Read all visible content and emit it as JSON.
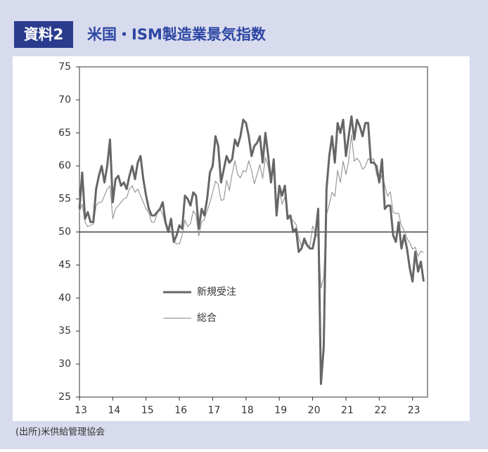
{
  "header": {
    "label": "資料2",
    "title": "米国・ISM製造業景気指数"
  },
  "footer": "(出所)米供給管理協会",
  "chart_data": {
    "type": "line",
    "x": [
      13,
      13.083,
      13.167,
      13.25,
      13.333,
      13.417,
      13.5,
      13.583,
      13.667,
      13.75,
      13.833,
      13.917,
      14,
      14.083,
      14.167,
      14.25,
      14.333,
      14.417,
      14.5,
      14.583,
      14.667,
      14.75,
      14.833,
      14.917,
      15,
      15.083,
      15.167,
      15.25,
      15.333,
      15.417,
      15.5,
      15.583,
      15.667,
      15.75,
      15.833,
      15.917,
      16,
      16.083,
      16.167,
      16.25,
      16.333,
      16.417,
      16.5,
      16.583,
      16.667,
      16.75,
      16.833,
      16.917,
      17,
      17.083,
      17.167,
      17.25,
      17.333,
      17.417,
      17.5,
      17.583,
      17.667,
      17.75,
      17.833,
      17.917,
      18,
      18.083,
      18.167,
      18.25,
      18.333,
      18.417,
      18.5,
      18.583,
      18.667,
      18.75,
      18.833,
      18.917,
      19,
      19.083,
      19.167,
      19.25,
      19.333,
      19.417,
      19.5,
      19.583,
      19.667,
      19.75,
      19.833,
      19.917,
      20,
      20.083,
      20.167,
      20.25,
      20.333,
      20.417,
      20.5,
      20.583,
      20.667,
      20.75,
      20.833,
      20.917,
      21,
      21.083,
      21.167,
      21.25,
      21.333,
      21.417,
      21.5,
      21.583,
      21.667,
      21.75,
      21.833,
      21.917,
      22,
      22.083,
      22.167,
      22.25,
      22.333,
      22.417,
      22.5,
      22.583,
      22.667,
      22.75,
      22.833,
      22.917,
      23,
      23.083,
      23.167,
      23.25,
      23.333
    ],
    "series": [
      {
        "name": "新規受注",
        "color": "#666666",
        "width": 3,
        "values": [
          53.5,
          59.0,
          52.0,
          53.0,
          51.5,
          51.5,
          56.5,
          58.5,
          60.0,
          57.5,
          60.0,
          64.0,
          54.5,
          58.0,
          58.5,
          57.0,
          57.5,
          56.5,
          58.5,
          60.0,
          58.0,
          60.5,
          61.5,
          58.0,
          55.5,
          53.5,
          52.5,
          52.5,
          53.0,
          53.5,
          54.5,
          51.5,
          50.0,
          52.0,
          48.5,
          49.5,
          51.0,
          50.5,
          55.5,
          55.0,
          54.0,
          56.0,
          55.5,
          50.5,
          53.5,
          52.5,
          55.0,
          59.0,
          60.0,
          64.5,
          63.0,
          57.5,
          59.5,
          61.5,
          60.5,
          61.0,
          64.0,
          63.0,
          64.5,
          67.0,
          66.5,
          64.5,
          61.5,
          63.0,
          63.5,
          64.5,
          60.5,
          65.0,
          61.5,
          57.5,
          61.0,
          52.5,
          57.0,
          55.5,
          57.0,
          52.0,
          52.5,
          50.0,
          50.5,
          47.0,
          47.5,
          49.0,
          48.0,
          47.5,
          47.5,
          49.5,
          53.5,
          27.0,
          32.5,
          56.5,
          61.5,
          64.5,
          60.5,
          66.5,
          65.0,
          67.0,
          61.5,
          64.5,
          67.5,
          64.0,
          67.0,
          66.0,
          64.5,
          66.5,
          66.5,
          60.5,
          60.5,
          60.0,
          57.5,
          61.0,
          53.5,
          54.0,
          54.0,
          49.5,
          48.5,
          51.5,
          47.5,
          49.5,
          47.5,
          44.5,
          42.5,
          47.0,
          44.0,
          45.5,
          42.5
        ]
      },
      {
        "name": "総合",
        "color": "#999999",
        "width": 1.2,
        "values": [
          53.1,
          54.2,
          51.5,
          50.8,
          51.0,
          51.2,
          54.0,
          54.5,
          54.5,
          55.5,
          56.5,
          57.0,
          52.0,
          53.5,
          54.0,
          54.5,
          55.0,
          55.2,
          56.5,
          57.0,
          56.0,
          56.5,
          55.5,
          54.5,
          53.5,
          52.9,
          51.5,
          51.5,
          52.8,
          53.5,
          52.7,
          51.1,
          50.2,
          50.1,
          48.6,
          48.2,
          48.2,
          49.5,
          51.8,
          50.8,
          51.3,
          53.2,
          52.6,
          49.4,
          51.5,
          51.9,
          53.2,
          54.5,
          56.0,
          57.7,
          57.2,
          54.8,
          54.9,
          57.8,
          56.3,
          58.8,
          60.8,
          58.7,
          58.2,
          59.3,
          59.1,
          60.8,
          59.3,
          57.3,
          58.7,
          60.2,
          58.1,
          61.3,
          59.8,
          57.7,
          59.3,
          54.3,
          56.6,
          54.2,
          55.3,
          52.8,
          52.1,
          51.7,
          51.2,
          49.1,
          47.8,
          48.3,
          48.1,
          47.8,
          50.9,
          50.1,
          49.1,
          41.5,
          43.1,
          52.6,
          54.2,
          56.0,
          55.4,
          59.3,
          57.5,
          60.7,
          58.7,
          60.8,
          64.7,
          60.7,
          61.2,
          60.6,
          59.5,
          59.9,
          61.1,
          60.8,
          61.1,
          58.8,
          57.6,
          58.6,
          57.1,
          55.4,
          56.1,
          53.0,
          52.8,
          52.8,
          50.9,
          50.2,
          49.0,
          48.4,
          47.4,
          47.7,
          46.3,
          47.1,
          46.9
        ]
      }
    ],
    "xlim": [
      13,
      23.45
    ],
    "xticks": [
      13,
      14,
      15,
      16,
      17,
      18,
      19,
      20,
      21,
      22,
      23
    ],
    "ylim": [
      25,
      75
    ],
    "yticks": [
      25,
      30,
      35,
      40,
      45,
      50,
      55,
      60,
      65,
      70,
      75
    ],
    "reference_line": 50,
    "grid": false
  }
}
